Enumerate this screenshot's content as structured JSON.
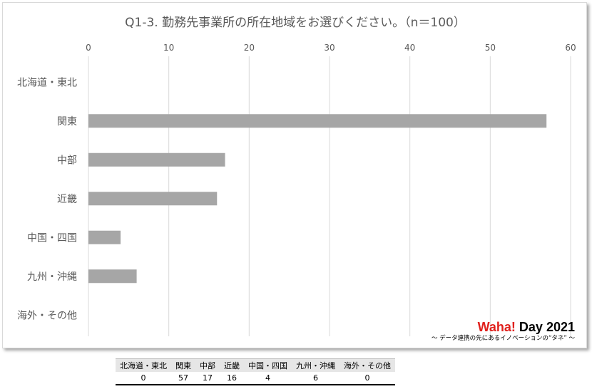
{
  "chart_data": {
    "type": "bar",
    "orientation": "horizontal",
    "title": "Q1-3. 勤務先事業所の所在地域をお選びください。（n＝100）",
    "categories": [
      "北海道・東北",
      "関東",
      "中部",
      "近畿",
      "中国・四国",
      "九州・沖縄",
      "海外・その他"
    ],
    "values": [
      0,
      57,
      17,
      16,
      4,
      6,
      0
    ],
    "xlim": [
      0,
      60
    ],
    "xticks": [
      "0",
      "10",
      "20",
      "30",
      "40",
      "50",
      "60"
    ],
    "axis_position": "top",
    "grid": true,
    "bar_color": "#a6a6a6"
  },
  "logo": {
    "brand_red": "Waha!",
    "brand_black": "Day 2021",
    "tagline": "〜 データ連携の先にあるイノベーションの“タネ” 〜"
  },
  "table": {
    "headers": [
      "北海道・東北",
      "関東",
      "中部",
      "近畿",
      "中国・四国",
      "九州・沖縄",
      "海外・その他"
    ],
    "values": [
      "0",
      "57",
      "17",
      "16",
      "4",
      "6",
      "0"
    ]
  }
}
